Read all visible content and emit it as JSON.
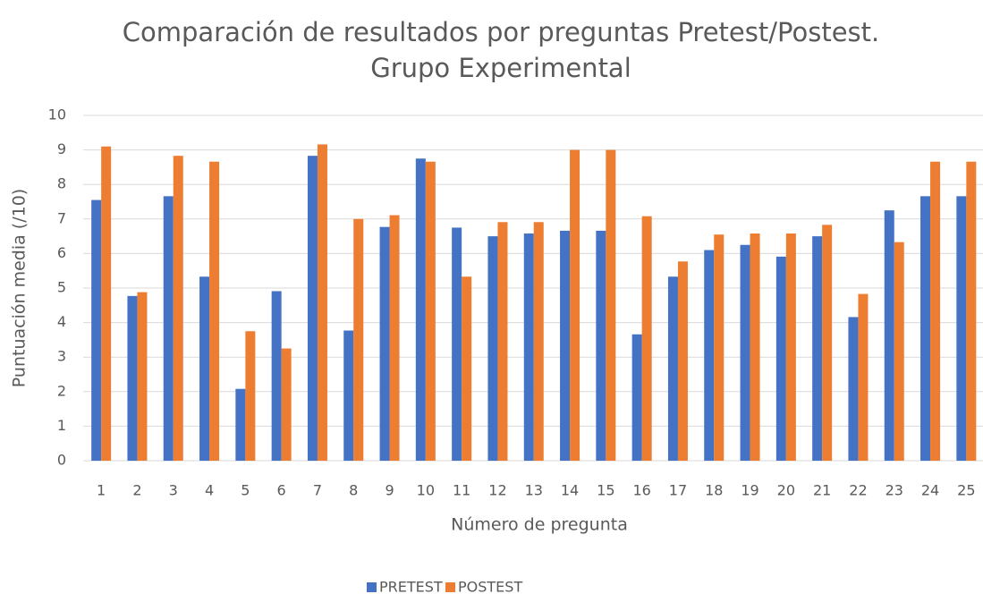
{
  "chart_data": {
    "type": "bar",
    "title": [
      "Comparación de resultados por preguntas Pretest/Postest.",
      "Grupo Experimental"
    ],
    "x_label": "Número de pregunta",
    "y_label": "Puntuación media (/10)",
    "categories": [
      "1",
      "2",
      "3",
      "4",
      "5",
      "6",
      "7",
      "8",
      "9",
      "10",
      "11",
      "12",
      "13",
      "14",
      "15",
      "16",
      "17",
      "18",
      "19",
      "20",
      "21",
      "22",
      "23",
      "24",
      "25"
    ],
    "series": [
      {
        "name": "PRETEST",
        "color": "#4472c4",
        "values": [
          7.55,
          4.77,
          7.66,
          5.33,
          2.08,
          4.91,
          8.83,
          3.77,
          6.77,
          8.75,
          6.75,
          6.5,
          6.58,
          6.66,
          6.66,
          3.66,
          5.33,
          6.1,
          6.25,
          5.91,
          6.5,
          4.16,
          7.25,
          7.66,
          7.66
        ]
      },
      {
        "name": "POSTEST",
        "color": "#ed7d31",
        "values": [
          9.1,
          4.88,
          8.83,
          8.66,
          3.75,
          3.25,
          9.16,
          7.0,
          7.11,
          8.66,
          5.33,
          6.91,
          6.91,
          9.0,
          9.0,
          7.08,
          5.77,
          6.55,
          6.58,
          6.58,
          6.83,
          4.83,
          6.33,
          8.66,
          8.66
        ]
      }
    ],
    "ylim": [
      0,
      10
    ],
    "yticks": [
      0,
      1,
      2,
      3,
      4,
      5,
      6,
      7,
      8,
      9,
      10
    ],
    "grid": true,
    "legend": "bottom"
  }
}
